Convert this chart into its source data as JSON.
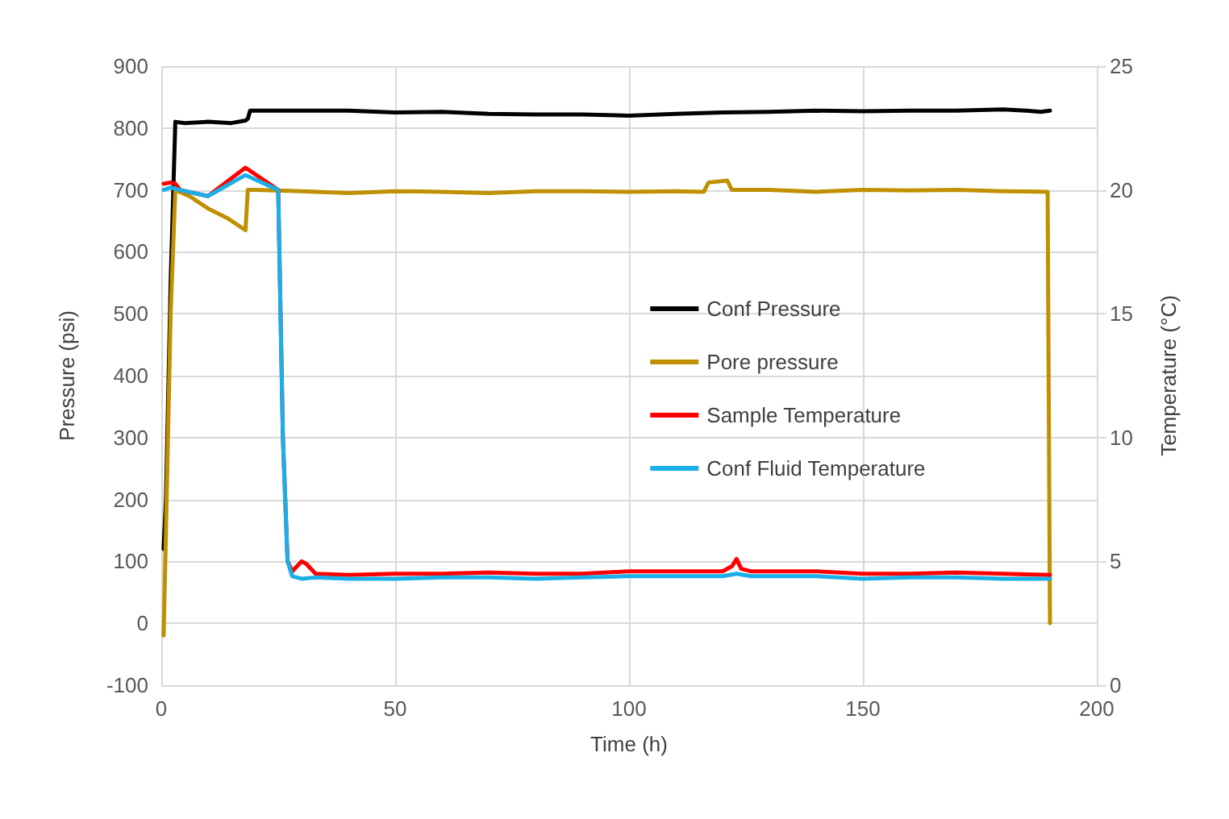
{
  "chart_data": {
    "type": "line",
    "xlabel": "Time (h)",
    "ylabel": "Pressure (psi)",
    "y2label": "Temperature (°C)",
    "xlim": [
      0,
      200
    ],
    "xticks": [
      0,
      50,
      100,
      150,
      200
    ],
    "ylim": [
      -100,
      900
    ],
    "yticks": [
      -100,
      0,
      100,
      200,
      300,
      400,
      500,
      600,
      700,
      800,
      900
    ],
    "y2lim": [
      0,
      25
    ],
    "y2ticks": [
      0,
      5,
      10,
      15,
      20,
      25
    ],
    "grid": true,
    "legend": "right",
    "marker": "none",
    "line_style": "solid",
    "series": [
      {
        "name": "Conf Pressure",
        "color": "#000000",
        "x": [
          0.5,
          1,
          2,
          3,
          5,
          10,
          15,
          18,
          18.5,
          19,
          25,
          40,
          50,
          60,
          70,
          80,
          90,
          100,
          110,
          120,
          130,
          140,
          150,
          160,
          170,
          180,
          185,
          188,
          190
        ],
        "values": [
          120,
          200,
          550,
          810,
          808,
          810,
          808,
          812,
          815,
          828,
          828,
          828,
          825,
          826,
          823,
          822,
          822,
          820,
          823,
          825,
          826,
          828,
          827,
          828,
          828,
          830,
          828,
          826,
          828
        ]
      },
      {
        "name": "Pore pressure",
        "color": "#bf9000",
        "x": [
          0.5,
          1,
          2,
          3,
          6,
          10,
          14,
          18,
          18.5,
          20,
          30,
          40,
          50,
          60,
          70,
          80,
          90,
          100,
          110,
          116,
          117,
          121,
          122,
          130,
          140,
          150,
          160,
          170,
          180,
          189.5,
          190
        ],
        "values": [
          -20,
          150,
          500,
          700,
          690,
          670,
          655,
          635,
          700,
          700,
          698,
          695,
          698,
          697,
          695,
          698,
          698,
          697,
          698,
          697,
          712,
          715,
          700,
          700,
          697,
          700,
          699,
          700,
          698,
          697,
          0
        ]
      },
      {
        "name": "Sample Temperature",
        "color": "#ff0000",
        "axis": "y2",
        "x": [
          0.5,
          2,
          3,
          4,
          10,
          18,
          25,
          26,
          27,
          28,
          30,
          31,
          33,
          40,
          50,
          60,
          70,
          80,
          90,
          100,
          110,
          120,
          122,
          123,
          124,
          126,
          140,
          150,
          160,
          170,
          180,
          190
        ],
        "values": [
          20.25,
          20.3,
          20.25,
          20,
          19.75,
          20.9,
          20,
          10,
          5,
          4.6,
          5,
          4.9,
          4.5,
          4.45,
          4.5,
          4.5,
          4.55,
          4.5,
          4.5,
          4.6,
          4.6,
          4.6,
          4.8,
          5.1,
          4.7,
          4.6,
          4.6,
          4.5,
          4.5,
          4.55,
          4.5,
          4.45
        ]
      },
      {
        "name": "Conf Fluid Temperature",
        "color": "#1aafe6",
        "axis": "y2",
        "x": [
          0.5,
          2,
          4,
          10,
          18,
          25,
          26,
          27,
          28,
          30,
          33,
          40,
          50,
          60,
          70,
          80,
          90,
          100,
          110,
          120,
          123,
          126,
          140,
          150,
          160,
          170,
          180,
          190
        ],
        "values": [
          20,
          20.1,
          20,
          19.75,
          20.6,
          20,
          10,
          5,
          4.4,
          4.3,
          4.35,
          4.3,
          4.3,
          4.35,
          4.35,
          4.3,
          4.35,
          4.4,
          4.4,
          4.4,
          4.5,
          4.4,
          4.4,
          4.3,
          4.35,
          4.35,
          4.3,
          4.3
        ]
      }
    ]
  }
}
